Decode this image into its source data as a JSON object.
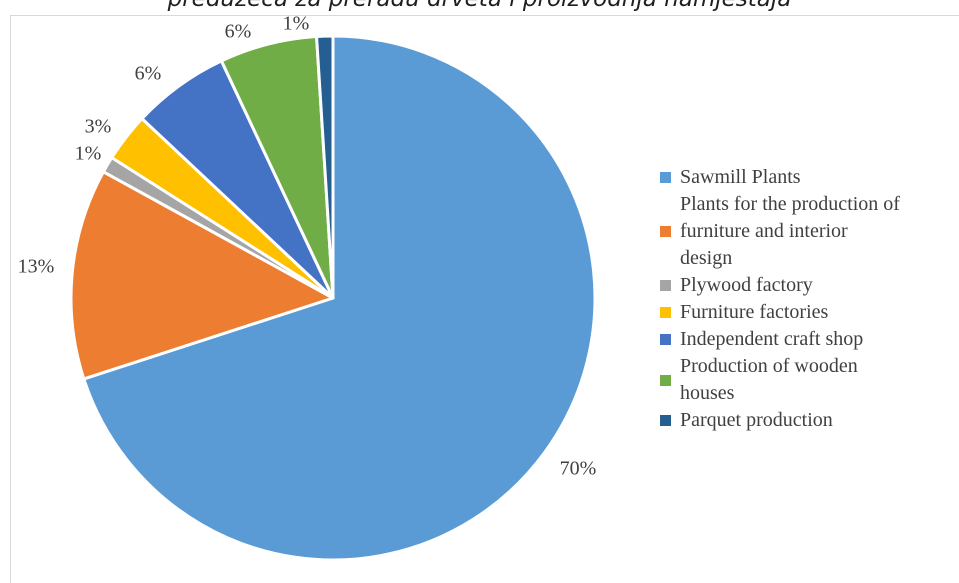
{
  "chart_data": {
    "type": "pie",
    "title": "preduzeća za preradu drveta i proizvodnja namještaja",
    "legend_position": "right",
    "slices": [
      {
        "label": "Sawmill Plants",
        "value": 70,
        "value_label": "70%",
        "color": "#5b9bd5"
      },
      {
        "label": "Plants for the production of\nfurniture and interior\ndesign",
        "value": 13,
        "value_label": "13%",
        "color": "#ed7d31"
      },
      {
        "label": "Plywood factory",
        "value": 1,
        "value_label": "1%",
        "color": "#a5a5a5"
      },
      {
        "label": "Furniture factories",
        "value": 3,
        "value_label": "3%",
        "color": "#ffc000"
      },
      {
        "label": "Independent craft shop",
        "value": 6,
        "value_label": "6%",
        "color": "#4472c4"
      },
      {
        "label": "Production of wooden\nhouses",
        "value": 6,
        "value_label": "6%",
        "color": "#70ad47"
      },
      {
        "label": "Parquet production",
        "value": 1,
        "value_label": "1%",
        "color": "#255e91"
      }
    ]
  }
}
